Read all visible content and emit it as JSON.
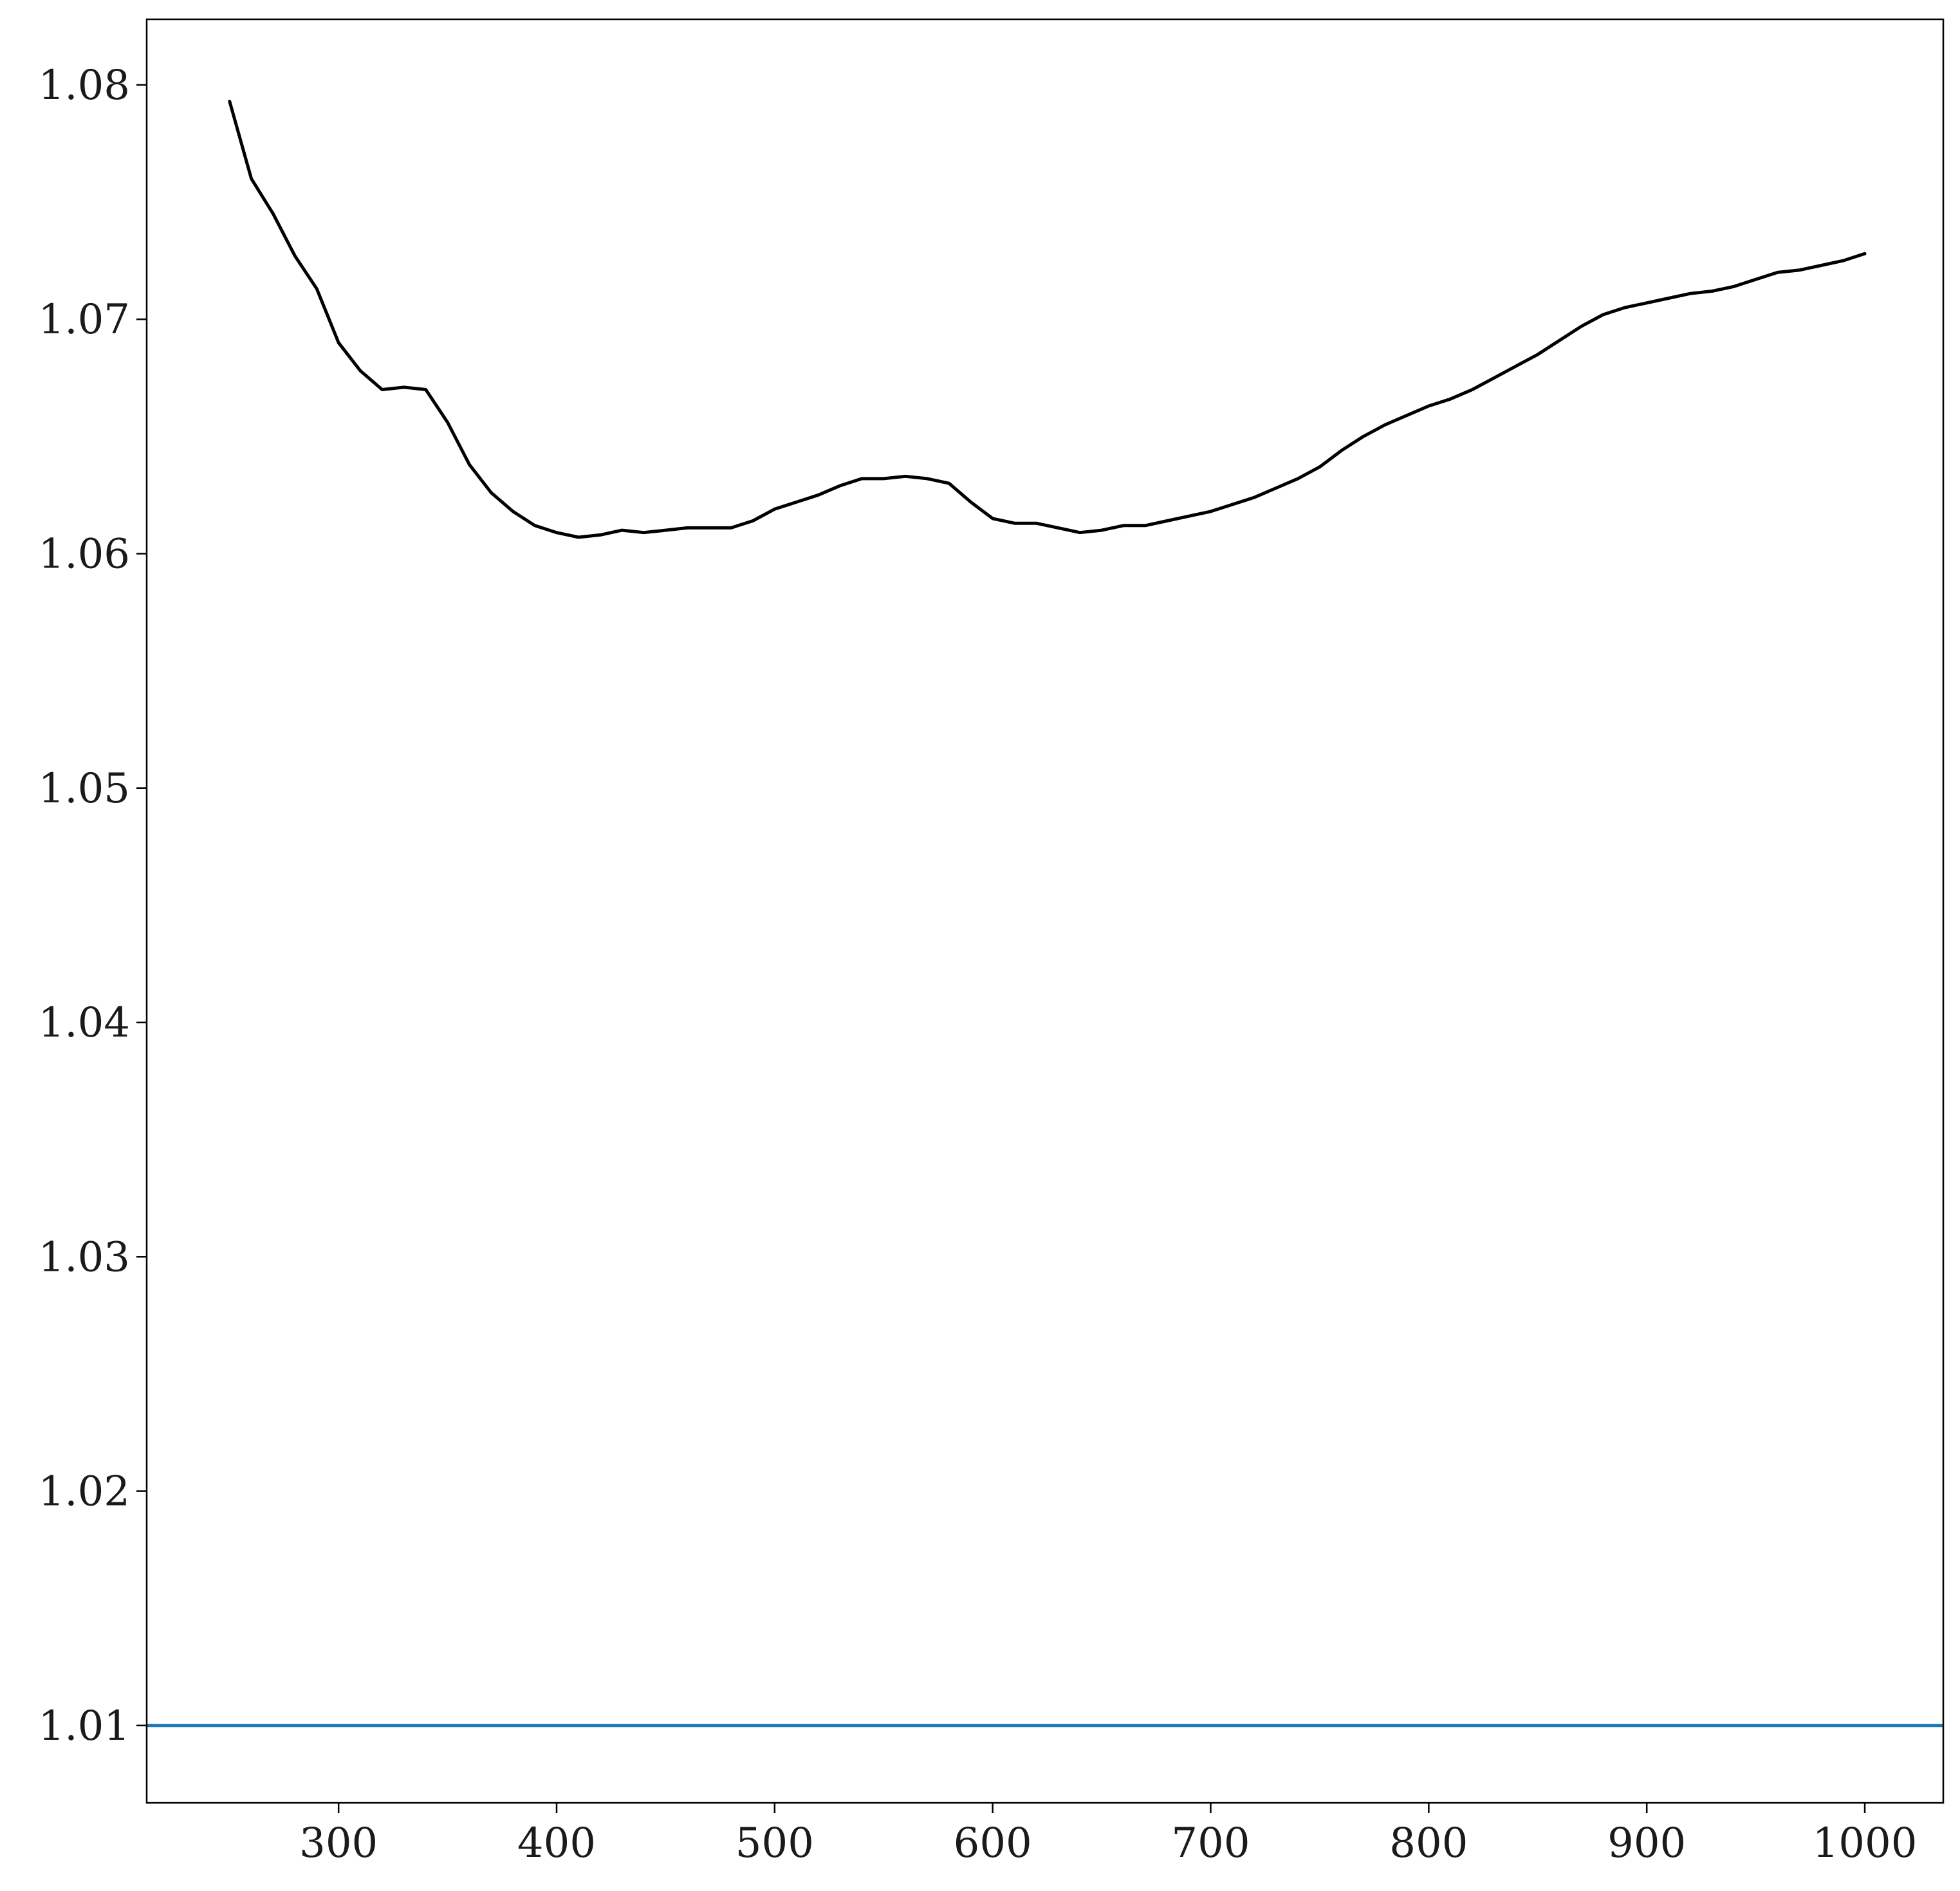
{
  "chart_data": {
    "type": "line",
    "title": "",
    "xlabel": "",
    "ylabel": "",
    "xlim": [
      212,
      1036
    ],
    "ylim": [
      1.0067,
      1.0828
    ],
    "grid": false,
    "legend": null,
    "x_ticks": [
      300,
      400,
      500,
      600,
      700,
      800,
      900,
      1000
    ],
    "x_tick_labels": [
      "300",
      "400",
      "500",
      "600",
      "700",
      "800",
      "900",
      "1000"
    ],
    "y_ticks": [
      1.01,
      1.02,
      1.03,
      1.04,
      1.05,
      1.06,
      1.07,
      1.08
    ],
    "y_tick_labels": [
      "1.01",
      "1.02",
      "1.03",
      "1.04",
      "1.05",
      "1.06",
      "1.07",
      "1.08"
    ],
    "series": [
      {
        "color": "#000000",
        "style": "solid",
        "x": [
          250,
          260,
          270,
          280,
          290,
          300,
          310,
          320,
          330,
          340,
          350,
          360,
          370,
          380,
          390,
          400,
          410,
          420,
          430,
          440,
          450,
          460,
          470,
          480,
          490,
          500,
          510,
          520,
          530,
          540,
          550,
          560,
          570,
          580,
          590,
          600,
          610,
          620,
          630,
          640,
          650,
          660,
          670,
          680,
          690,
          700,
          710,
          720,
          730,
          740,
          750,
          760,
          770,
          780,
          790,
          800,
          810,
          820,
          830,
          840,
          850,
          860,
          870,
          880,
          890,
          900,
          910,
          920,
          930,
          940,
          950,
          960,
          970,
          980,
          990,
          1000
        ],
        "y": [
          1.0793,
          1.076,
          1.0745,
          1.0727,
          1.0713,
          1.069,
          1.0678,
          1.067,
          1.0671,
          1.067,
          1.0656,
          1.0638,
          1.0626,
          1.0618,
          1.0612,
          1.0609,
          1.0607,
          1.0608,
          1.061,
          1.0609,
          1.061,
          1.0611,
          1.0611,
          1.0611,
          1.0614,
          1.0619,
          1.0622,
          1.0625,
          1.0629,
          1.0632,
          1.0632,
          1.0633,
          1.0632,
          1.063,
          1.0622,
          1.0615,
          1.0613,
          1.0613,
          1.0611,
          1.0609,
          1.061,
          1.0612,
          1.0612,
          1.0614,
          1.0616,
          1.0618,
          1.0621,
          1.0624,
          1.0628,
          1.0632,
          1.0637,
          1.0644,
          1.065,
          1.0655,
          1.0659,
          1.0663,
          1.0666,
          1.067,
          1.0675,
          1.068,
          1.0685,
          1.0691,
          1.0697,
          1.0702,
          1.0705,
          1.0707,
          1.0709,
          1.0711,
          1.0712,
          1.0714,
          1.0717,
          1.072,
          1.0721,
          1.0723,
          1.0725,
          1.0728
        ]
      },
      {
        "color": "#1f77b4",
        "style": "solid",
        "type": "hline",
        "y": 1.01
      }
    ]
  }
}
